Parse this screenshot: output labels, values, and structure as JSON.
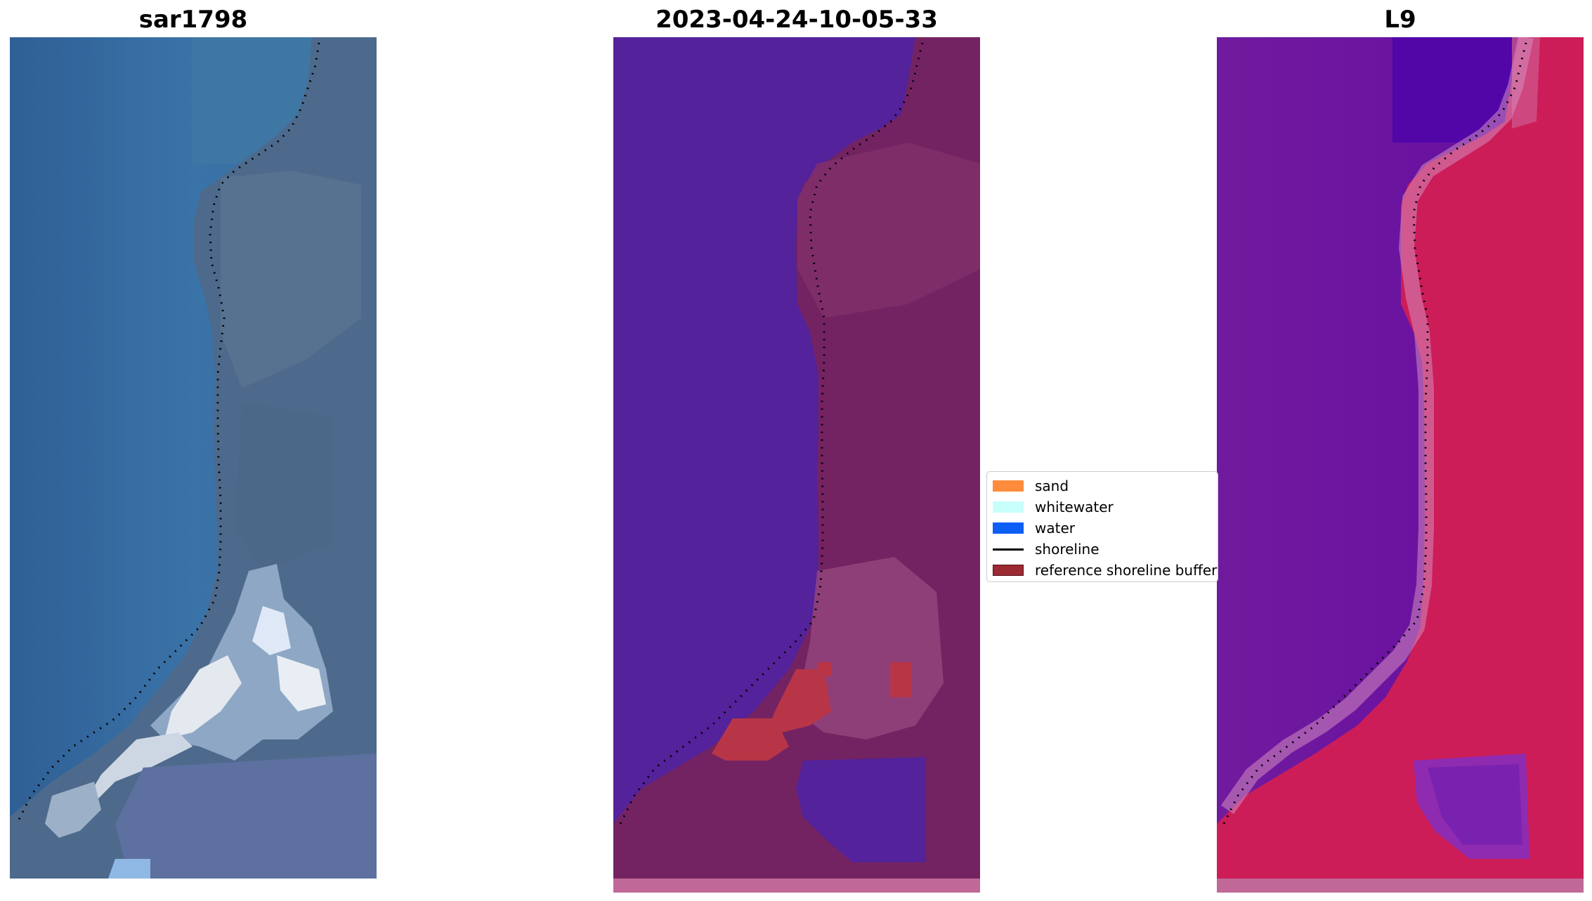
{
  "panels": [
    {
      "title": "sar1798"
    },
    {
      "title": "2023-04-24-10-05-33"
    },
    {
      "title": "L9"
    }
  ],
  "legend": {
    "items": [
      {
        "label": "sand",
        "kind": "patch",
        "color": "#ff8c3c"
      },
      {
        "label": "whitewater",
        "kind": "patch",
        "color": "#c8fffa"
      },
      {
        "label": "water",
        "kind": "patch",
        "color": "#0b5ff5"
      },
      {
        "label": "shoreline",
        "kind": "line",
        "color": "#000000"
      },
      {
        "label": "reference shoreline buffer",
        "kind": "patch",
        "color": "#9b2a33",
        "edge": "#5a1015"
      }
    ]
  },
  "colors": {
    "rgb_water": "#3a6a9c",
    "rgb_land": "#5a7090",
    "rgb_surf": "#e8ecf2",
    "class_water": "#54229a",
    "class_land": "#742362",
    "class_buffer_bar": "#c06898",
    "class_sand_red": "#b83548",
    "ndwi_water": "#6a1598",
    "ndwi_land": "#cc1d58"
  }
}
